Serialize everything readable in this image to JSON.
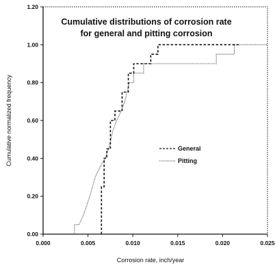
{
  "chart_data": {
    "type": "line",
    "title_lines": [
      "Cumulative distributions of corrosion rate",
      "for general and pitting corrosion"
    ],
    "xlabel": "Corrosion rate, inch/year",
    "ylabel": "Cumulative normalized frequency",
    "xlim": [
      0,
      0.025
    ],
    "ylim": [
      0,
      1.2
    ],
    "x_ticks": [
      "0.000",
      "0.005",
      "0.010",
      "0.015",
      "0.020",
      "0.025"
    ],
    "y_ticks": [
      "0.00",
      "0.20",
      "0.40",
      "0.60",
      "0.80",
      "1.00",
      "1.20"
    ],
    "legend_position": "center-right",
    "grid": false,
    "series": [
      {
        "name": "General",
        "style": "dashed",
        "color": "#111111",
        "x": [
          0.0065,
          0.0065,
          0.0068,
          0.0068,
          0.0071,
          0.0071,
          0.0075,
          0.0075,
          0.008,
          0.008,
          0.0088,
          0.0088,
          0.0095,
          0.0095,
          0.0101,
          0.0101,
          0.0113,
          0.0113,
          0.012,
          0.012,
          0.0128,
          0.0128,
          0.022
        ],
        "y": [
          0.0,
          0.25,
          0.25,
          0.4,
          0.4,
          0.45,
          0.45,
          0.6,
          0.6,
          0.65,
          0.65,
          0.75,
          0.75,
          0.85,
          0.85,
          0.9,
          0.9,
          0.9,
          0.9,
          0.95,
          0.95,
          1.0,
          1.0
        ]
      },
      {
        "name": "Pitting",
        "style": "dotted",
        "color": "#333333",
        "x": [
          0.0035,
          0.0035,
          0.004,
          0.0045,
          0.0052,
          0.0058,
          0.0063,
          0.0069,
          0.0073,
          0.0078,
          0.0082,
          0.0087,
          0.0091,
          0.0096,
          0.0101,
          0.0101,
          0.0112,
          0.0112,
          0.0193,
          0.0193,
          0.0213,
          0.0213,
          0.022,
          0.022,
          0.025
        ],
        "y": [
          0.0,
          0.05,
          0.05,
          0.1,
          0.2,
          0.3,
          0.35,
          0.4,
          0.45,
          0.55,
          0.6,
          0.65,
          0.7,
          0.8,
          0.8,
          0.85,
          0.85,
          0.9,
          0.9,
          0.95,
          0.95,
          1.0,
          1.0,
          1.0,
          1.0
        ]
      }
    ]
  },
  "legend": {
    "general_label": "General",
    "pitting_label": "Pitting"
  }
}
